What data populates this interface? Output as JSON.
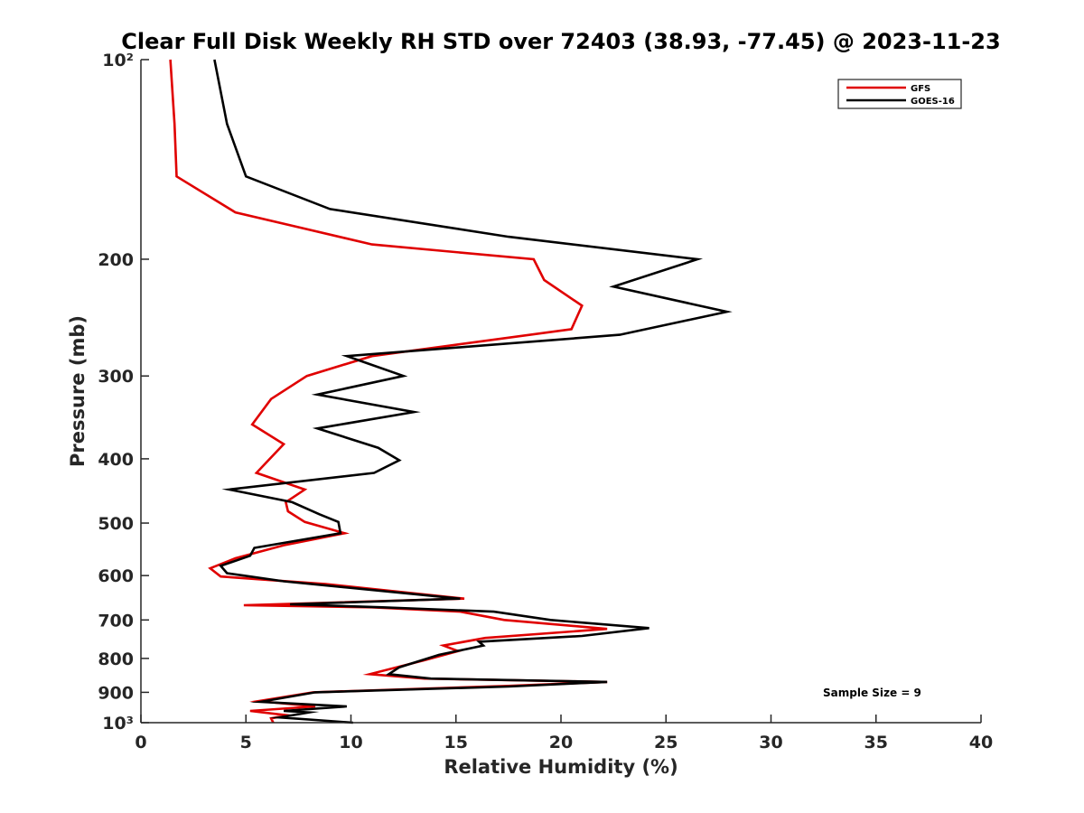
{
  "chart_data": {
    "type": "line",
    "title": "Clear Full Disk Weekly RH STD over 72403 (38.93, -77.45) @ 2023-11-23",
    "xlabel": "Relative Humidity (%)",
    "ylabel": "Pressure (mb)",
    "xlim": [
      0,
      40
    ],
    "ylim": [
      100,
      1000
    ],
    "y_scale": "log",
    "y_reversed": true,
    "x_ticks": [
      0,
      5,
      10,
      15,
      20,
      25,
      30,
      35,
      40
    ],
    "x_tick_labels": [
      "0",
      "5",
      "10",
      "15",
      "20",
      "25",
      "30",
      "35",
      "40"
    ],
    "y_ticks": [
      100,
      200,
      300,
      400,
      500,
      600,
      700,
      800,
      900,
      1000
    ],
    "y_tick_labels": [
      "10²",
      "200",
      "300",
      "400",
      "500",
      "600",
      "700",
      "800",
      "900",
      "10³"
    ],
    "grid": false,
    "legend_position": "top-right",
    "annotation": "Sample Size = 9",
    "series": [
      {
        "name": "GFS",
        "color": "#e00000",
        "points": [
          [
            1.4,
            100
          ],
          [
            1.6,
            125
          ],
          [
            1.7,
            150
          ],
          [
            4.5,
            170
          ],
          [
            11,
            190
          ],
          [
            18.7,
            200
          ],
          [
            19.2,
            215
          ],
          [
            21,
            235
          ],
          [
            20.5,
            255
          ],
          [
            11,
            280
          ],
          [
            7.9,
            300
          ],
          [
            6.2,
            325
          ],
          [
            5.3,
            355
          ],
          [
            6.8,
            380
          ],
          [
            5.5,
            420
          ],
          [
            7.8,
            445
          ],
          [
            6.9,
            465
          ],
          [
            7,
            480
          ],
          [
            7.8,
            498
          ],
          [
            9.7,
            518
          ],
          [
            6.8,
            540
          ],
          [
            4.5,
            565
          ],
          [
            3.3,
            585
          ],
          [
            3.8,
            602
          ],
          [
            8.8,
            618
          ],
          [
            15.4,
            650
          ],
          [
            4.9,
            665
          ],
          [
            11,
            670
          ],
          [
            15.2,
            680
          ],
          [
            17.3,
            700
          ],
          [
            22.2,
            722
          ],
          [
            16.4,
            745
          ],
          [
            14.4,
            765
          ],
          [
            15.1,
            780
          ],
          [
            13.5,
            805
          ],
          [
            10.9,
            845
          ],
          [
            13.5,
            858
          ],
          [
            22.2,
            868
          ],
          [
            17.5,
            880
          ],
          [
            8.2,
            900
          ],
          [
            5.6,
            928
          ],
          [
            8.3,
            945
          ],
          [
            5.2,
            960
          ],
          [
            7,
            975
          ],
          [
            6.2,
            985
          ],
          [
            6.3,
            1000
          ]
        ]
      },
      {
        "name": "GOES-16",
        "color": "#000000",
        "points": [
          [
            3.5,
            100
          ],
          [
            4.1,
            125
          ],
          [
            5,
            150
          ],
          [
            9,
            168
          ],
          [
            17.5,
            185
          ],
          [
            26.5,
            200
          ],
          [
            22.5,
            220
          ],
          [
            27.9,
            240
          ],
          [
            22.8,
            260
          ],
          [
            9.8,
            280
          ],
          [
            10.5,
            285
          ],
          [
            12.5,
            300
          ],
          [
            8.4,
            320
          ],
          [
            13,
            340
          ],
          [
            8.4,
            360
          ],
          [
            11.3,
            385
          ],
          [
            12.3,
            402
          ],
          [
            11.1,
            420
          ],
          [
            4.2,
            445
          ],
          [
            7.2,
            465
          ],
          [
            8.5,
            485
          ],
          [
            9.4,
            498
          ],
          [
            9.5,
            518
          ],
          [
            5.4,
            545
          ],
          [
            5.2,
            560
          ],
          [
            3.8,
            580
          ],
          [
            4.1,
            595
          ],
          [
            6.8,
            612
          ],
          [
            15.2,
            650
          ],
          [
            7.1,
            663
          ],
          [
            11.5,
            670
          ],
          [
            16.8,
            680
          ],
          [
            19.5,
            700
          ],
          [
            24.2,
            720
          ],
          [
            21,
            740
          ],
          [
            16.1,
            755
          ],
          [
            16.3,
            765
          ],
          [
            14.2,
            790
          ],
          [
            12.3,
            825
          ],
          [
            11.8,
            845
          ],
          [
            13.8,
            858
          ],
          [
            22.2,
            868
          ],
          [
            17.5,
            882
          ],
          [
            8.3,
            900
          ],
          [
            5.7,
            930
          ],
          [
            9.8,
            945
          ],
          [
            6.8,
            960
          ],
          [
            8,
            965
          ],
          [
            6.6,
            982
          ],
          [
            10.1,
            1000
          ]
        ]
      }
    ]
  }
}
